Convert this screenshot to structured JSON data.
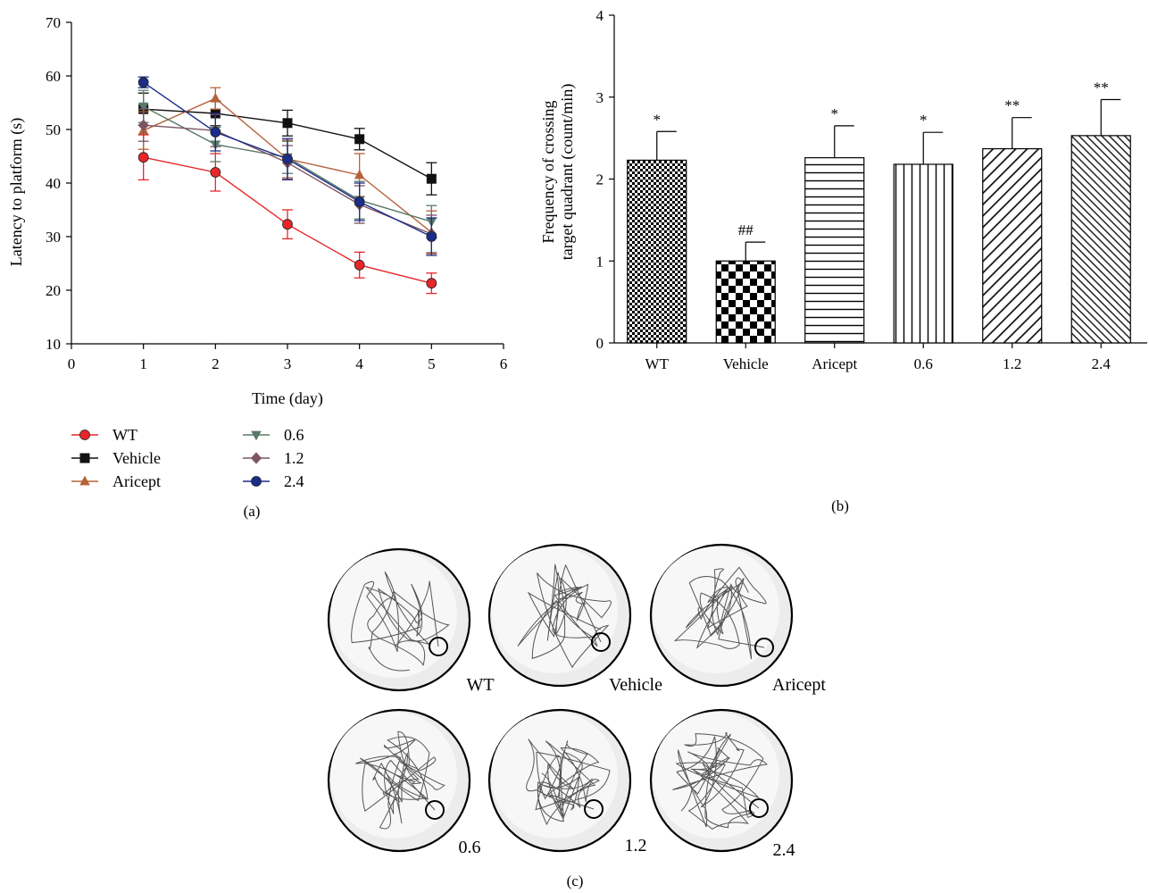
{
  "chart_data": [
    {
      "panel": "(a)",
      "type": "line",
      "xlabel": "Time (day)",
      "ylabel": "Latency to platform (s)",
      "xlim": [
        0,
        6
      ],
      "ylim": [
        10,
        70
      ],
      "xticks": [
        "0",
        "1",
        "2",
        "3",
        "4",
        "5",
        "6"
      ],
      "yticks": [
        "10",
        "20",
        "30",
        "40",
        "50",
        "60",
        "70"
      ],
      "legend_position": "below-left",
      "series": [
        {
          "name": "WT",
          "color": "#e8262a",
          "marker": "circle",
          "x": [
            1,
            2,
            3,
            4,
            5
          ],
          "y": [
            44.8,
            42.0,
            32.3,
            24.7,
            21.3
          ],
          "err": [
            4.2,
            3.5,
            2.7,
            2.4,
            1.9
          ]
        },
        {
          "name": "Vehicle",
          "color": "#111111",
          "marker": "square",
          "x": [
            1,
            2,
            3,
            4,
            5
          ],
          "y": [
            53.8,
            53.0,
            51.2,
            48.2,
            40.8
          ],
          "err": [
            3.0,
            2.3,
            2.4,
            2.0,
            3.0
          ]
        },
        {
          "name": "Aricept",
          "color": "#b5623b",
          "marker": "triangle-up",
          "x": [
            1,
            2,
            3,
            4,
            5
          ],
          "y": [
            49.8,
            55.8,
            44.5,
            41.5,
            30.8
          ],
          "err": [
            3.5,
            2.0,
            3.5,
            4.0,
            4.0
          ]
        },
        {
          "name": "0.6",
          "color": "#5a7a69",
          "marker": "triangle-down",
          "x": [
            1,
            2,
            3,
            4,
            5
          ],
          "y": [
            54.3,
            47.2,
            44.8,
            36.8,
            32.8
          ],
          "err": [
            3.0,
            3.2,
            3.0,
            3.5,
            3.0
          ]
        },
        {
          "name": "1.2",
          "color": "#7d5562",
          "marker": "diamond",
          "x": [
            1,
            2,
            3,
            4,
            5
          ],
          "y": [
            50.8,
            49.8,
            43.8,
            36.0,
            30.5
          ],
          "err": [
            3.0,
            3.0,
            3.2,
            3.5,
            3.5
          ]
        },
        {
          "name": "2.4",
          "color": "#1b2d8a",
          "marker": "circle",
          "x": [
            1,
            2,
            3,
            4,
            5
          ],
          "y": [
            58.8,
            49.5,
            44.5,
            36.5,
            30.0
          ],
          "err": [
            1.0,
            3.5,
            3.8,
            3.5,
            3.5
          ]
        }
      ]
    },
    {
      "panel": "(b)",
      "type": "bar",
      "ylabel": "Frequency of crossing target quadrant (count/min)",
      "ylabel_lines": [
        "Frequency of crossing",
        "target quadrant (count/min)"
      ],
      "ylim": [
        0,
        4
      ],
      "yticks": [
        "0",
        "1",
        "2",
        "3",
        "4"
      ],
      "categories": [
        "WT",
        "Vehicle",
        "Aricept",
        "0.6",
        "1.2",
        "2.4"
      ],
      "values": [
        2.23,
        1.0,
        2.26,
        2.18,
        2.37,
        2.53
      ],
      "errors": [
        0.35,
        0.23,
        0.39,
        0.39,
        0.38,
        0.44
      ],
      "significance": [
        "*",
        "##",
        "*",
        "*",
        "**",
        "**"
      ],
      "patterns": [
        "dense-check",
        "checkerboard",
        "horizontal-lines",
        "vertical-lines",
        "diagonal-lines",
        "diagonal-lines-dense"
      ]
    }
  ],
  "panel_c": {
    "label": "(c)",
    "mazes": [
      "WT",
      "Vehicle",
      "Aricept",
      "0.6",
      "1.2",
      "2.4"
    ]
  }
}
